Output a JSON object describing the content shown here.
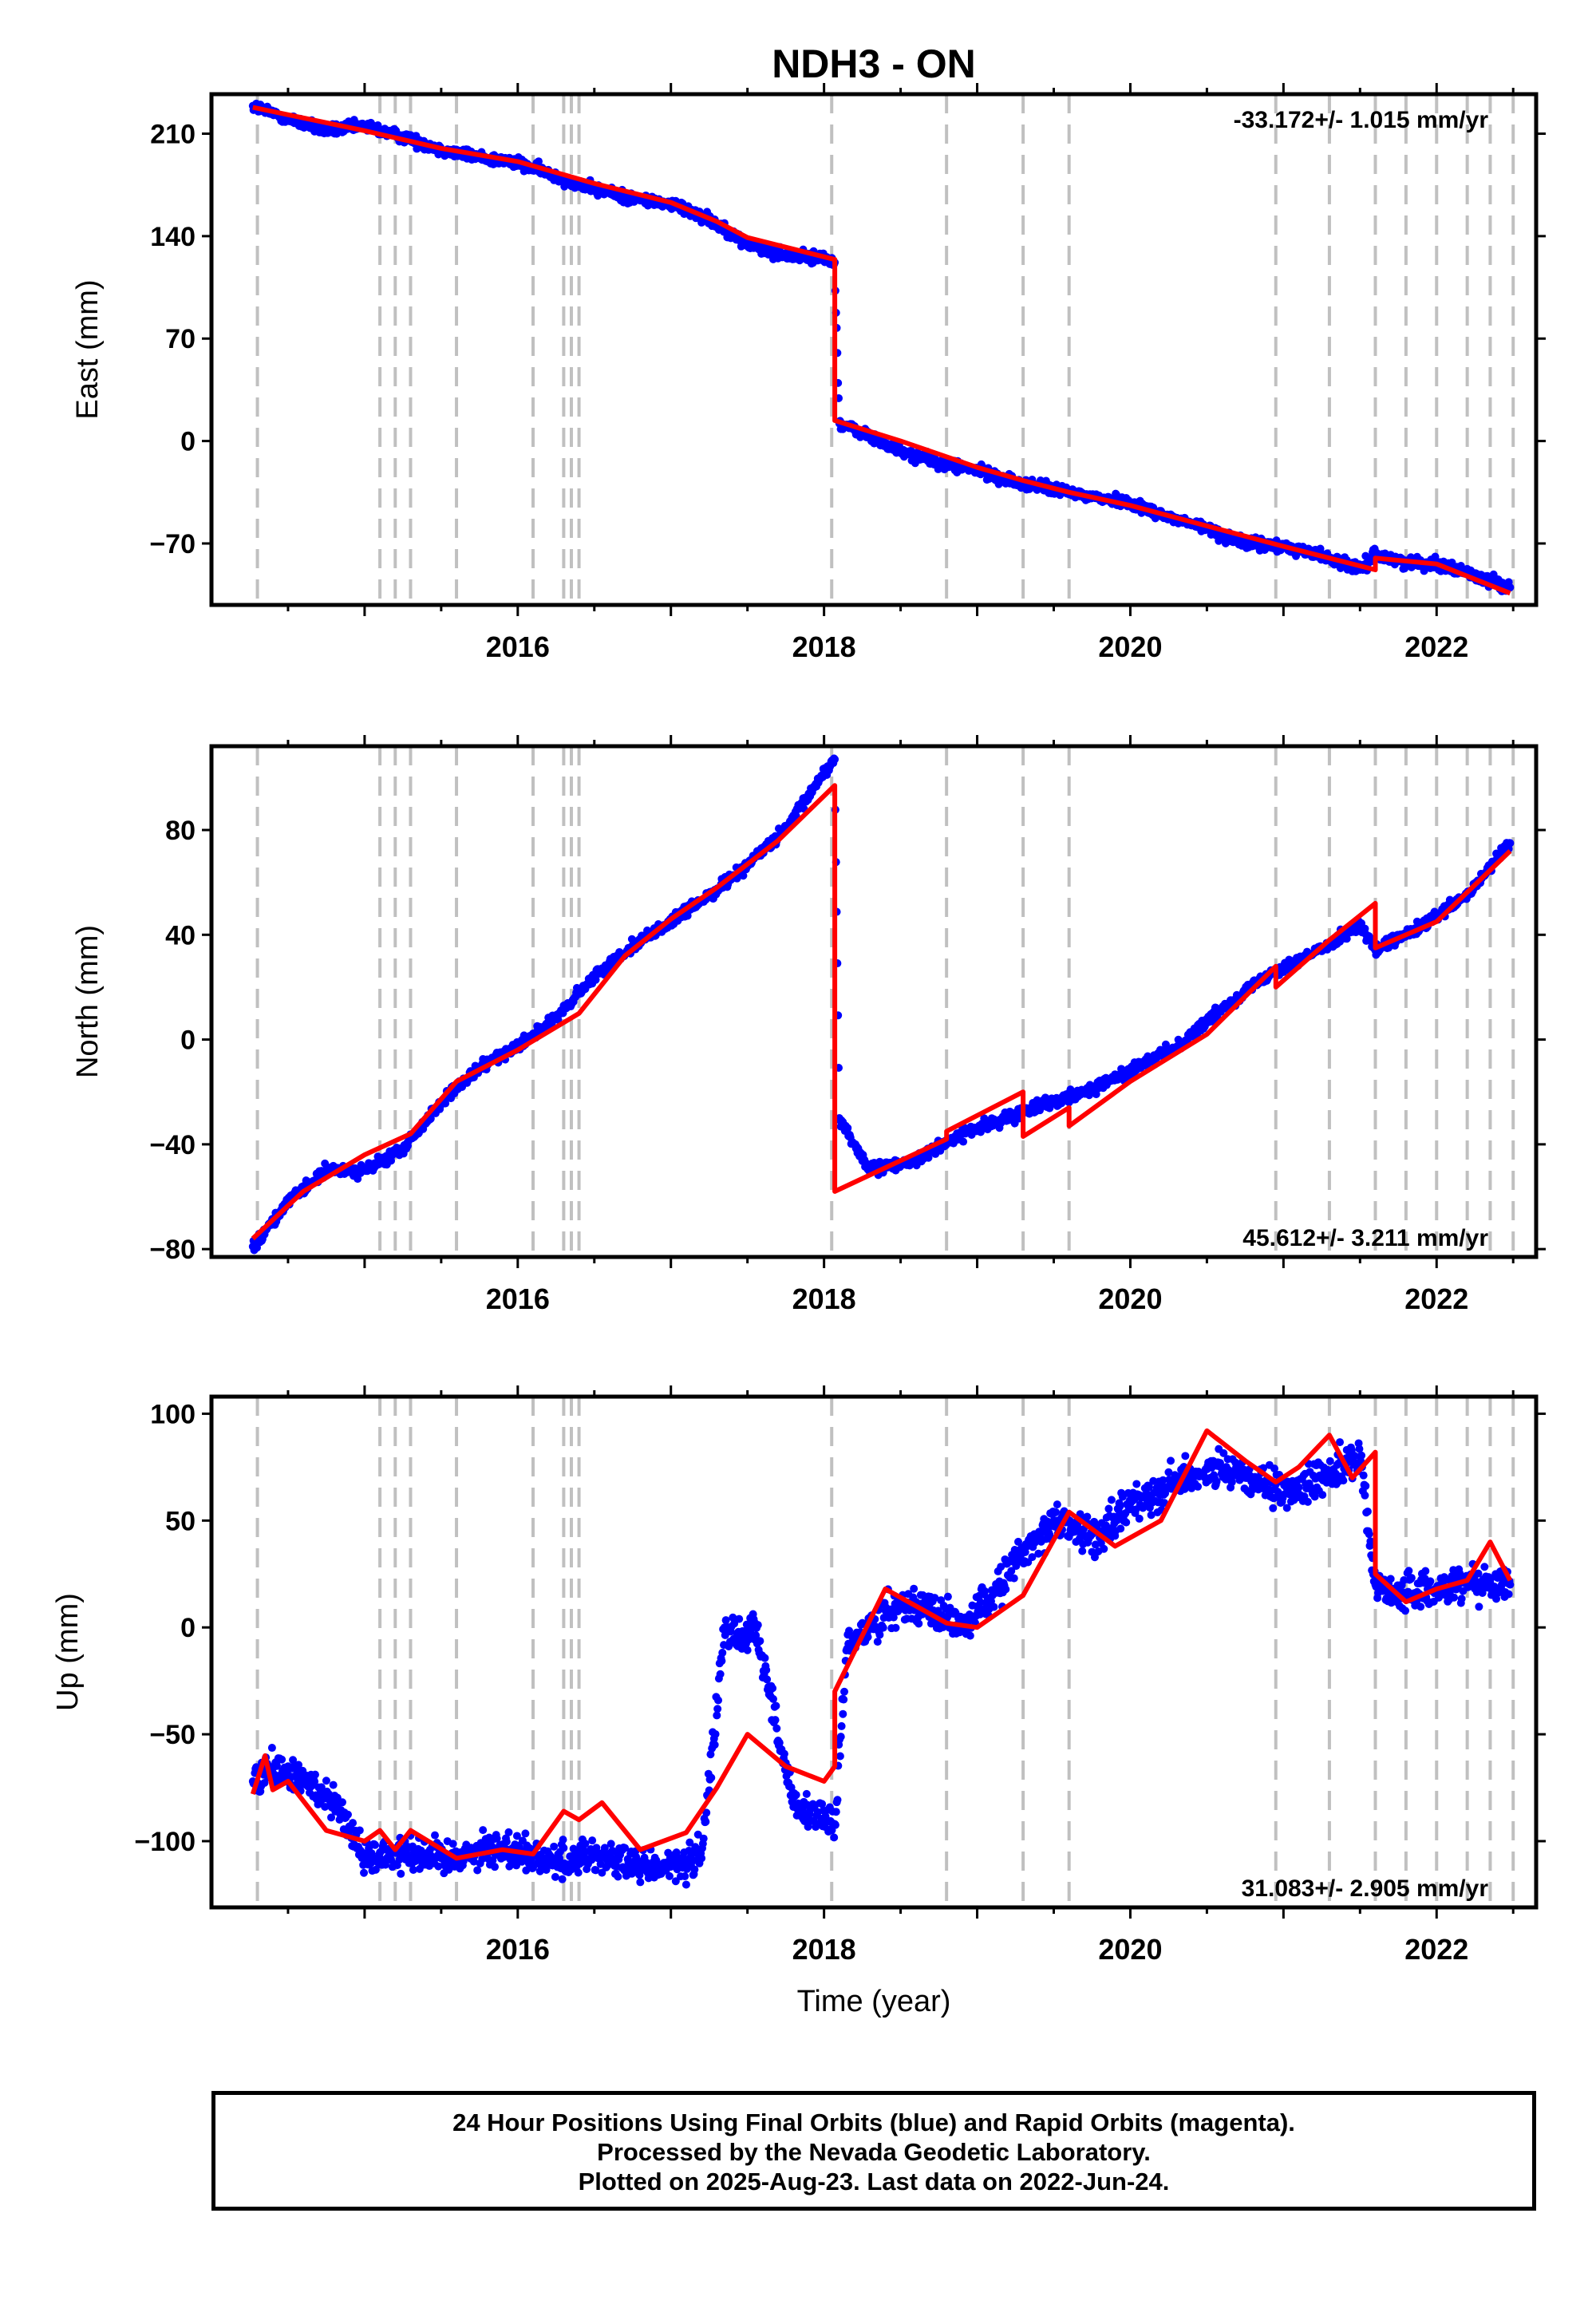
{
  "figure_title": "NDH3 - ON",
  "footer": {
    "line1": "24 Hour Positions Using Final Orbits (blue) and Rapid Orbits (magenta).",
    "line2": "Processed by the Nevada Geodetic Laboratory.",
    "line3": "Plotted on 2025-Aug-23. Last data on 2022-Jun-24."
  },
  "colors": {
    "data": "#0000ff",
    "model": "#ff0000",
    "event_lines": "#c0c0c0",
    "frame": "#000000"
  },
  "chart_data": [
    {
      "type": "scatter",
      "title": "NDH3 - ON",
      "xlabel": "",
      "ylabel": "East (mm)",
      "xlim": [
        2014.0,
        2022.65
      ],
      "ylim": [
        -112,
        237
      ],
      "xticks": [
        2016,
        2018,
        2020,
        2022
      ],
      "yticks": [
        210,
        140,
        70,
        0,
        -70
      ],
      "ytick_labels": [
        "210",
        "140",
        "70",
        "0",
        "−70"
      ],
      "rate_label": "-33.172+/- 1.015 mm/yr",
      "rate_position": "top-right",
      "event_lines": [
        2014.3,
        2015.1,
        2015.2,
        2015.3,
        2015.6,
        2016.1,
        2016.3,
        2016.35,
        2016.4,
        2018.05,
        2018.8,
        2019.3,
        2019.6,
        2020.95,
        2021.3,
        2021.6,
        2021.8,
        2022.0,
        2022.2,
        2022.35,
        2022.5
      ],
      "series": [
        {
          "name": "Final Orbits (blue)",
          "style": "points",
          "x": [
            2014.27,
            2014.5,
            2014.75,
            2015.0,
            2015.25,
            2015.5,
            2015.75,
            2016.0,
            2016.25,
            2016.5,
            2016.75,
            2017.0,
            2017.25,
            2017.5,
            2017.75,
            2018.0,
            2018.07,
            2018.1,
            2018.3,
            2018.5,
            2018.75,
            2019.0,
            2019.25,
            2019.5,
            2019.75,
            2020.0,
            2020.25,
            2020.5,
            2020.75,
            2021.0,
            2021.25,
            2021.5,
            2021.6,
            2021.75,
            2022.0,
            2022.25,
            2022.48
          ],
          "y": [
            229,
            220,
            212,
            215,
            208,
            199,
            194,
            190,
            181,
            172,
            166,
            162,
            152,
            134,
            127,
            125,
            122,
            12,
            3,
            -7,
            -15,
            -20,
            -28,
            -33,
            -38,
            -42,
            -52,
            -60,
            -70,
            -72,
            -78,
            -88,
            -77,
            -82,
            -84,
            -92,
            -100
          ]
        },
        {
          "name": "Model",
          "style": "line",
          "x": [
            2014.27,
            2015.0,
            2015.5,
            2016.0,
            2016.5,
            2017.0,
            2017.3,
            2017.5,
            2018.07,
            2018.07,
            2018.5,
            2019.0,
            2019.3,
            2019.6,
            2020.0,
            2020.5,
            2021.0,
            2021.3,
            2021.6,
            2021.6,
            2022.0,
            2022.48
          ],
          "y": [
            228,
            212,
            200,
            191,
            176,
            163,
            150,
            139,
            124,
            14,
            0,
            -18,
            -27,
            -35,
            -44,
            -58,
            -72,
            -80,
            -88,
            -80,
            -84,
            -104
          ]
        }
      ]
    },
    {
      "type": "scatter",
      "xlabel": "",
      "ylabel": "North (mm)",
      "xlim": [
        2014.0,
        2022.65
      ],
      "ylim": [
        -83,
        112
      ],
      "xticks": [
        2016,
        2018,
        2020,
        2022
      ],
      "yticks": [
        80,
        40,
        0,
        -40,
        -80
      ],
      "ytick_labels": [
        "80",
        "40",
        "0",
        "−40",
        "−80"
      ],
      "rate_label": "45.612+/- 3.211 mm/yr",
      "rate_position": "bottom-right",
      "event_lines": [
        2014.3,
        2015.1,
        2015.2,
        2015.3,
        2015.6,
        2016.1,
        2016.3,
        2016.35,
        2016.4,
        2018.05,
        2018.8,
        2019.3,
        2019.6,
        2020.95,
        2021.3,
        2021.6,
        2021.8,
        2022.0,
        2022.2,
        2022.35,
        2022.5
      ],
      "series": [
        {
          "name": "Final Orbits (blue)",
          "style": "points",
          "x": [
            2014.27,
            2014.5,
            2014.75,
            2015.0,
            2015.25,
            2015.5,
            2015.75,
            2016.0,
            2016.25,
            2016.5,
            2016.75,
            2017.0,
            2017.25,
            2017.5,
            2017.75,
            2018.0,
            2018.07,
            2018.1,
            2018.3,
            2018.6,
            2018.9,
            2019.2,
            2019.4,
            2019.7,
            2020.0,
            2020.3,
            2020.6,
            2020.9,
            2021.2,
            2021.5,
            2021.6,
            2021.9,
            2022.2,
            2022.48
          ],
          "y": [
            -79,
            -62,
            -50,
            -50,
            -42,
            -24,
            -11,
            -2,
            8,
            24,
            36,
            45,
            55,
            67,
            80,
            102,
            107,
            -30,
            -50,
            -46,
            -36,
            -30,
            -25,
            -20,
            -12,
            -3,
            12,
            25,
            33,
            44,
            34,
            43,
            55,
            75
          ]
        },
        {
          "name": "Model",
          "style": "line",
          "x": [
            2014.27,
            2014.6,
            2015.0,
            2015.3,
            2015.6,
            2016.0,
            2016.4,
            2016.7,
            2017.0,
            2017.3,
            2017.7,
            2018.07,
            2018.07,
            2018.8,
            2018.8,
            2019.3,
            2019.3,
            2019.6,
            2019.6,
            2020.0,
            2020.5,
            2020.95,
            2020.95,
            2021.3,
            2021.6,
            2021.6,
            2022.0,
            2022.48
          ],
          "y": [
            -76,
            -58,
            -44,
            -36,
            -16,
            -4,
            10,
            32,
            46,
            58,
            76,
            97,
            -58,
            -38,
            -35,
            -20,
            -37,
            -26,
            -33,
            -16,
            2,
            28,
            20,
            38,
            52,
            35,
            45,
            72
          ]
        }
      ]
    },
    {
      "type": "scatter",
      "xlabel": "Time (year)",
      "ylabel": "Up (mm)",
      "xlim": [
        2014.0,
        2022.65
      ],
      "ylim": [
        -131,
        108
      ],
      "xticks": [
        2016,
        2018,
        2020,
        2022
      ],
      "yticks": [
        100,
        50,
        0,
        -50,
        -100
      ],
      "ytick_labels": [
        "100",
        "50",
        "0",
        "−50",
        "−100"
      ],
      "rate_label": "31.083+/- 2.905 mm/yr",
      "rate_position": "bottom-right",
      "event_lines": [
        2014.3,
        2015.1,
        2015.2,
        2015.3,
        2015.6,
        2016.1,
        2016.3,
        2016.35,
        2016.4,
        2018.05,
        2018.8,
        2019.3,
        2019.6,
        2020.95,
        2021.3,
        2021.6,
        2021.8,
        2022.0,
        2022.2,
        2022.35,
        2022.5
      ],
      "series": [
        {
          "name": "Final Orbits (blue)",
          "style": "points",
          "x": [
            2014.27,
            2014.4,
            2014.6,
            2014.8,
            2015.0,
            2015.25,
            2015.5,
            2015.75,
            2016.0,
            2016.25,
            2016.5,
            2016.75,
            2017.0,
            2017.2,
            2017.35,
            2017.45,
            2017.55,
            2017.8,
            2017.95,
            2018.07,
            2018.15,
            2018.4,
            2018.6,
            2018.9,
            2019.1,
            2019.3,
            2019.5,
            2019.8,
            2020.0,
            2020.3,
            2020.5,
            2020.75,
            2021.0,
            2021.3,
            2021.5,
            2021.6,
            2021.8,
            2022.0,
            2022.2,
            2022.48
          ],
          "y": [
            -72,
            -66,
            -72,
            -80,
            -108,
            -104,
            -108,
            -104,
            -104,
            -110,
            -106,
            -112,
            -112,
            -108,
            0,
            -5,
            2,
            -84,
            -88,
            -92,
            -10,
            8,
            12,
            0,
            15,
            35,
            50,
            42,
            58,
            68,
            74,
            70,
            62,
            72,
            80,
            20,
            15,
            18,
            22,
            20
          ]
        },
        {
          "name": "Model",
          "style": "line",
          "x": [
            2014.27,
            2014.35,
            2014.4,
            2014.5,
            2014.75,
            2015.0,
            2015.1,
            2015.2,
            2015.3,
            2015.6,
            2015.9,
            2016.1,
            2016.3,
            2016.4,
            2016.55,
            2016.8,
            2017.1,
            2017.3,
            2017.5,
            2017.75,
            2018.0,
            2018.07,
            2018.07,
            2018.4,
            2018.8,
            2019.0,
            2019.3,
            2019.6,
            2019.9,
            2020.2,
            2020.5,
            2020.75,
            2020.95,
            2021.1,
            2021.3,
            2021.45,
            2021.6,
            2021.6,
            2021.8,
            2022.0,
            2022.2,
            2022.35,
            2022.48
          ],
          "y": [
            -78,
            -60,
            -76,
            -72,
            -95,
            -100,
            -95,
            -104,
            -95,
            -108,
            -104,
            -106,
            -86,
            -90,
            -82,
            -104,
            -96,
            -75,
            -50,
            -65,
            -72,
            -65,
            -30,
            18,
            2,
            0,
            15,
            54,
            38,
            50,
            92,
            78,
            68,
            75,
            90,
            70,
            82,
            25,
            12,
            18,
            22,
            40,
            22
          ]
        }
      ]
    }
  ]
}
